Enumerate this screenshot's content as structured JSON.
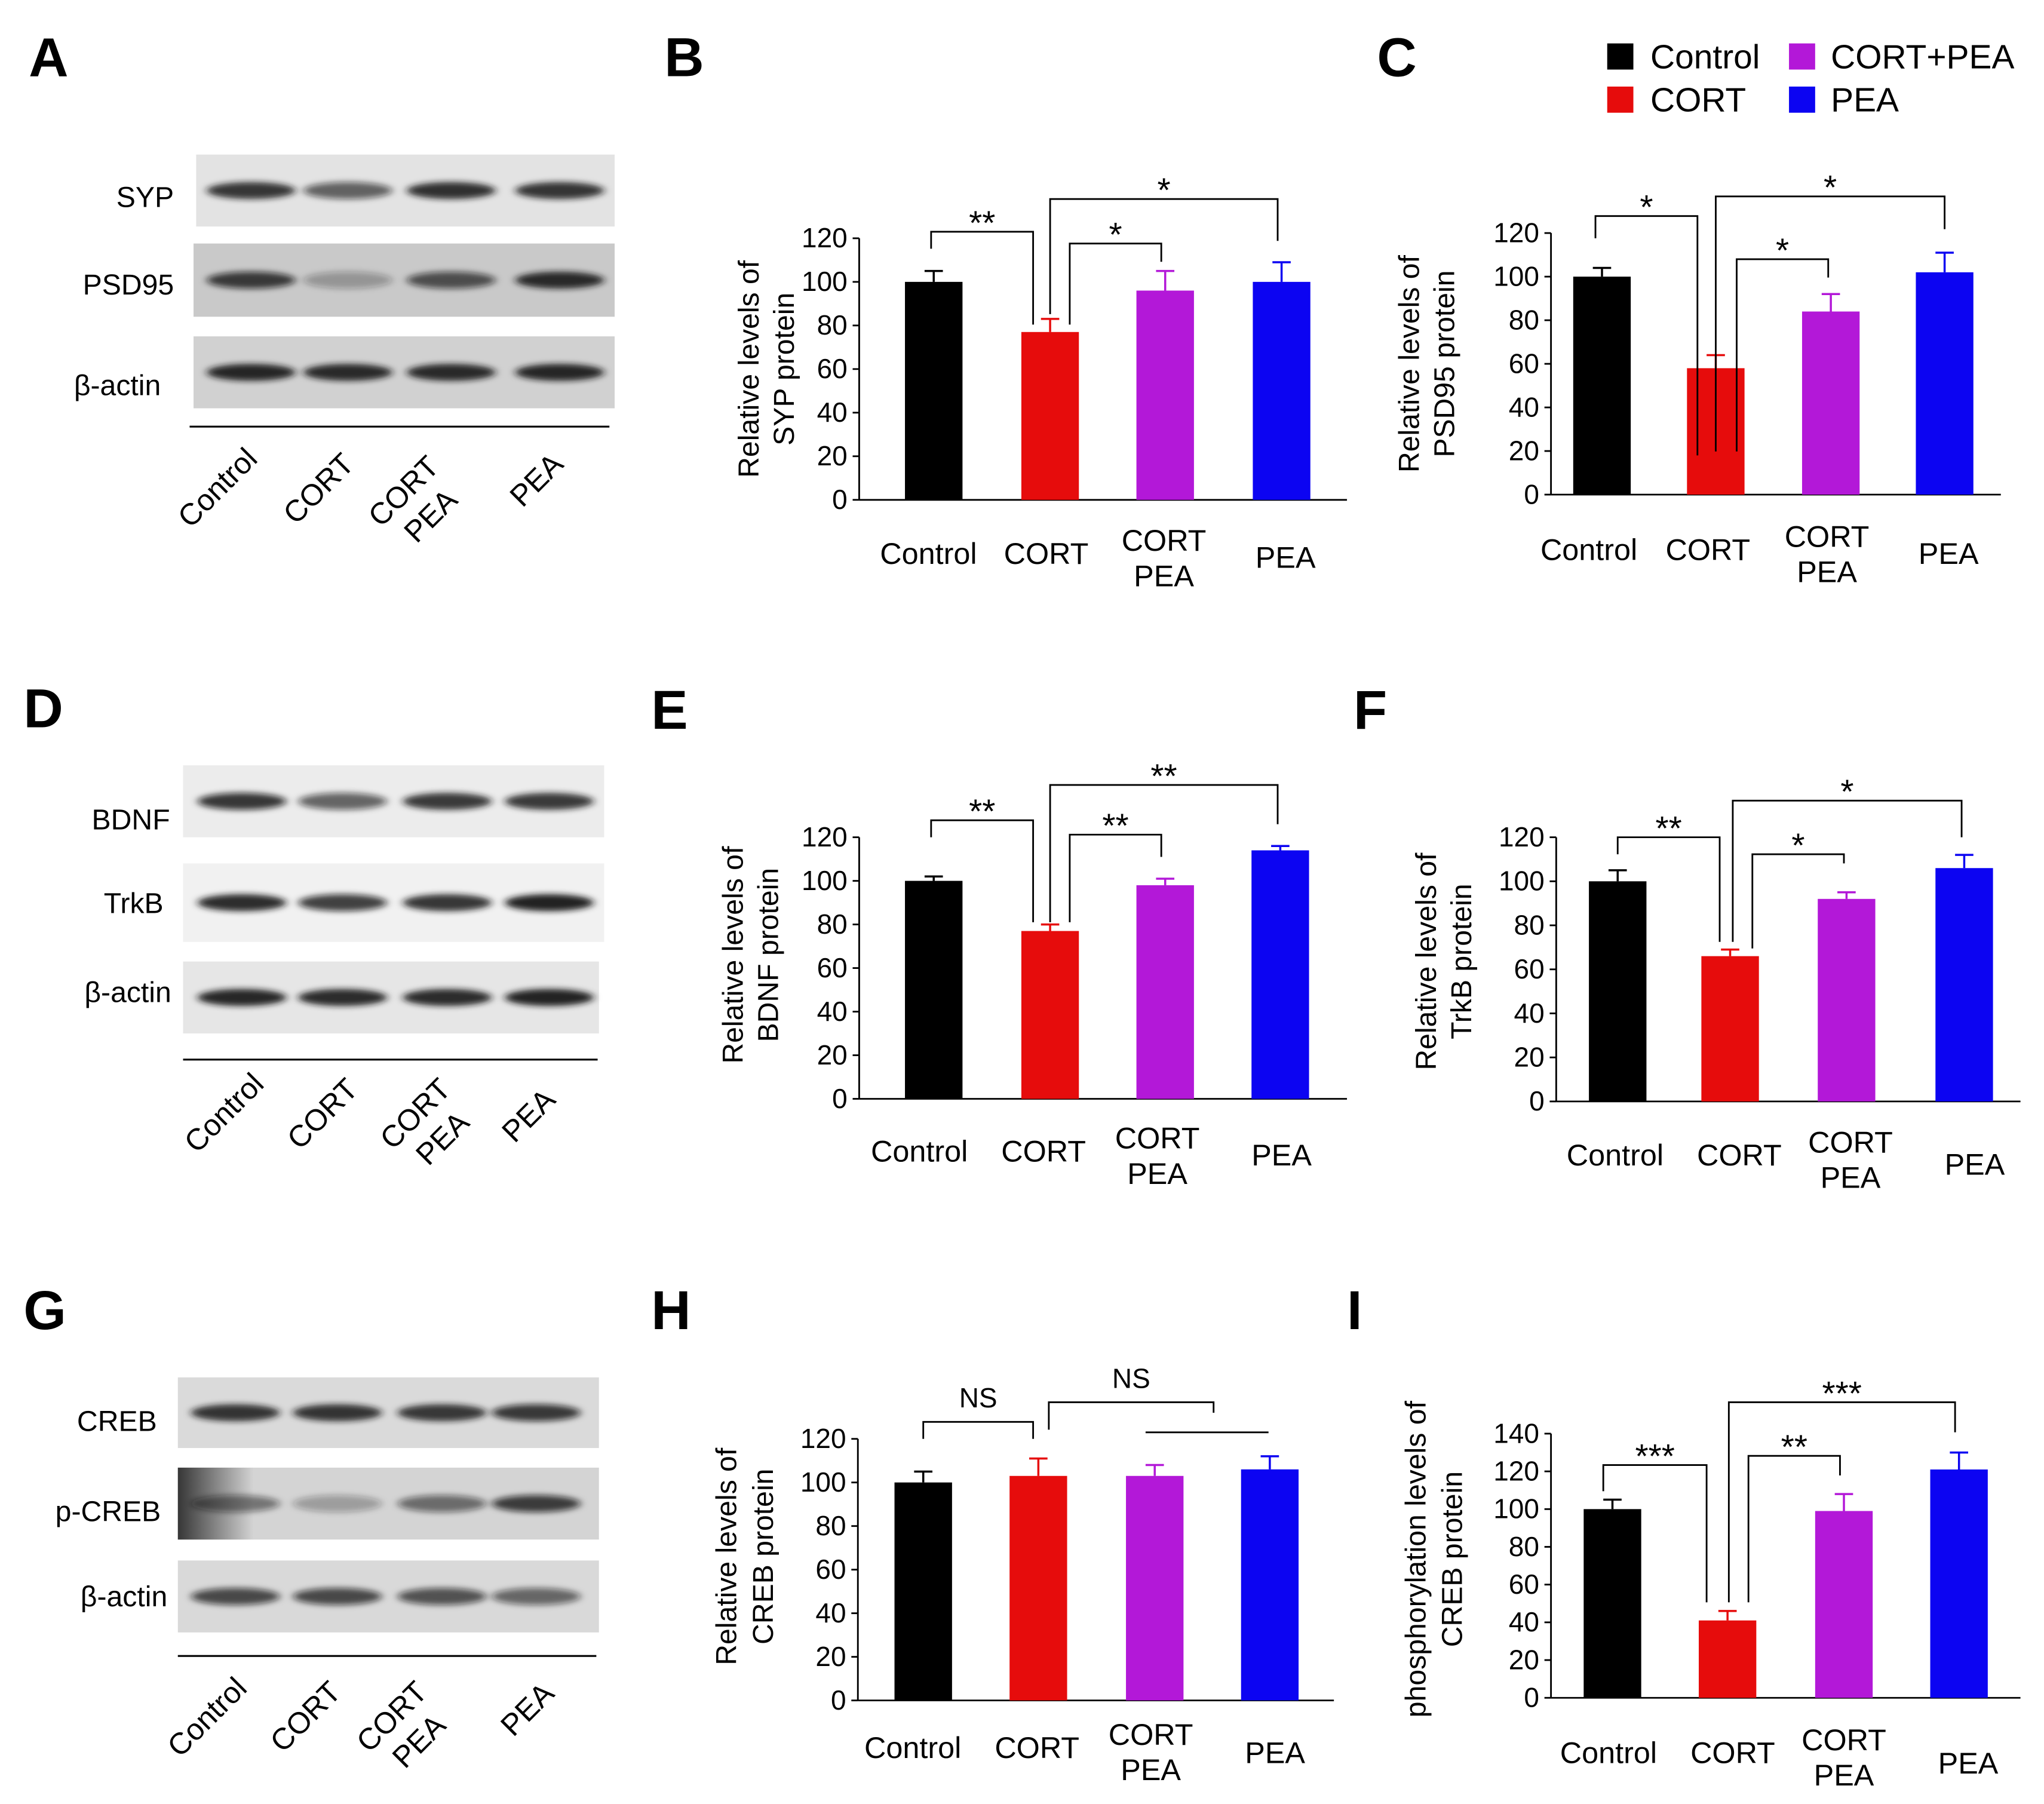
{
  "panel_labels": {
    "A": "A",
    "B": "B",
    "C": "C",
    "D": "D",
    "E": "E",
    "F": "F",
    "G": "G",
    "H": "H",
    "I": "I"
  },
  "legend": [
    {
      "label": "Control",
      "color": "#000000"
    },
    {
      "label": "CORT+PEA",
      "color": "#b318d8"
    },
    {
      "label": "CORT",
      "color": "#e60c0c"
    },
    {
      "label": "PEA",
      "color": "#0c04f2"
    }
  ],
  "blots": [
    {
      "panel": "A",
      "rows": [
        {
          "label": "SYP",
          "band_intensity": [
            0.85,
            0.62,
            0.88,
            0.86
          ]
        },
        {
          "label": "PSD95",
          "band_intensity": [
            0.78,
            0.3,
            0.68,
            0.9
          ]
        },
        {
          "label": "β-actin",
          "band_intensity": [
            0.92,
            0.9,
            0.9,
            0.92
          ]
        }
      ],
      "lanes": [
        [
          "Control"
        ],
        [
          "CORT"
        ],
        [
          "CORT",
          "PEA"
        ],
        [
          "PEA"
        ]
      ]
    },
    {
      "panel": "D",
      "rows": [
        {
          "label": "BDNF",
          "band_intensity": [
            0.82,
            0.62,
            0.84,
            0.84
          ]
        },
        {
          "label": "TrkB",
          "band_intensity": [
            0.9,
            0.78,
            0.86,
            0.95
          ]
        },
        {
          "label": "β-actin",
          "band_intensity": [
            0.92,
            0.9,
            0.9,
            0.94
          ]
        }
      ],
      "lanes": [
        [
          "Control"
        ],
        [
          "CORT"
        ],
        [
          "CORT",
          "PEA"
        ],
        [
          "PEA"
        ]
      ]
    },
    {
      "panel": "G",
      "rows": [
        {
          "label": "CREB",
          "band_intensity": [
            0.86,
            0.86,
            0.84,
            0.8
          ]
        },
        {
          "label": "p-CREB",
          "band_intensity": [
            0.5,
            0.3,
            0.55,
            0.78
          ]
        },
        {
          "label": "β-actin",
          "band_intensity": [
            0.72,
            0.72,
            0.68,
            0.58
          ]
        }
      ],
      "lanes": [
        [
          "Control"
        ],
        [
          "CORT"
        ],
        [
          "CORT",
          "PEA"
        ],
        [
          "PEA"
        ]
      ]
    }
  ],
  "chart_data": [
    {
      "panel": "B",
      "type": "bar",
      "title": "",
      "ylabel": [
        "Relative levels of",
        "SYP protein"
      ],
      "ylim": [
        0,
        120
      ],
      "yticks": [
        0,
        20,
        40,
        60,
        80,
        100,
        120
      ],
      "categories": [
        [
          "Control"
        ],
        [
          "CORT"
        ],
        [
          "CORT",
          "PEA"
        ],
        [
          "PEA"
        ]
      ],
      "values": [
        100,
        77,
        96,
        100
      ],
      "errors": [
        5,
        6,
        9,
        9
      ],
      "bar_colors": [
        "#000000",
        "#e60c0c",
        "#b318d8",
        "#0c04f2"
      ],
      "significance": [
        {
          "between": [
            0,
            1
          ],
          "label": "**"
        },
        {
          "between": [
            1,
            2
          ],
          "label": "*"
        },
        {
          "between": [
            1,
            3
          ],
          "label": "*"
        }
      ]
    },
    {
      "panel": "C",
      "type": "bar",
      "title": "",
      "ylabel": [
        "Relative levels of",
        "PSD95 protein"
      ],
      "ylim": [
        0,
        120
      ],
      "yticks": [
        0,
        20,
        40,
        60,
        80,
        100,
        120
      ],
      "categories": [
        [
          "Control"
        ],
        [
          "CORT"
        ],
        [
          "CORT",
          "PEA"
        ],
        [
          "PEA"
        ]
      ],
      "values": [
        100,
        58,
        84,
        102
      ],
      "errors": [
        4,
        6,
        8,
        9
      ],
      "bar_colors": [
        "#000000",
        "#e60c0c",
        "#b318d8",
        "#0c04f2"
      ],
      "significance": [
        {
          "between": [
            0,
            1
          ],
          "label": "*"
        },
        {
          "between": [
            1,
            2
          ],
          "label": "*"
        },
        {
          "between": [
            1,
            3
          ],
          "label": "*"
        }
      ]
    },
    {
      "panel": "E",
      "type": "bar",
      "title": "",
      "ylabel": [
        "Relative levels of",
        "BDNF protein"
      ],
      "ylim": [
        0,
        120
      ],
      "yticks": [
        0,
        20,
        40,
        60,
        80,
        100,
        120
      ],
      "categories": [
        [
          "Control"
        ],
        [
          "CORT"
        ],
        [
          "CORT",
          "PEA"
        ],
        [
          "PEA"
        ]
      ],
      "values": [
        100,
        77,
        98,
        114
      ],
      "errors": [
        2,
        3,
        3,
        2
      ],
      "bar_colors": [
        "#000000",
        "#e60c0c",
        "#b318d8",
        "#0c04f2"
      ],
      "significance": [
        {
          "between": [
            0,
            1
          ],
          "label": "**"
        },
        {
          "between": [
            1,
            2
          ],
          "label": "**"
        },
        {
          "between": [
            1,
            3
          ],
          "label": "**"
        }
      ]
    },
    {
      "panel": "F",
      "type": "bar",
      "title": "",
      "ylabel": [
        "Relative levels of",
        "TrkB protein"
      ],
      "ylim": [
        0,
        120
      ],
      "yticks": [
        0,
        20,
        40,
        60,
        80,
        100,
        120
      ],
      "categories": [
        [
          "Control"
        ],
        [
          "CORT"
        ],
        [
          "CORT",
          "PEA"
        ],
        [
          "PEA"
        ]
      ],
      "values": [
        100,
        66,
        92,
        106
      ],
      "errors": [
        5,
        3,
        3,
        6
      ],
      "bar_colors": [
        "#000000",
        "#e60c0c",
        "#b318d8",
        "#0c04f2"
      ],
      "significance": [
        {
          "between": [
            0,
            1
          ],
          "label": "**"
        },
        {
          "between": [
            1,
            2
          ],
          "label": "*"
        },
        {
          "between": [
            1,
            3
          ],
          "label": "*"
        }
      ]
    },
    {
      "panel": "H",
      "type": "bar",
      "title": "",
      "ylabel": [
        "Relative levels of",
        "CREB protein"
      ],
      "ylim": [
        0,
        120
      ],
      "yticks": [
        0,
        20,
        40,
        60,
        80,
        100,
        120
      ],
      "categories": [
        [
          "Control"
        ],
        [
          "CORT"
        ],
        [
          "CORT",
          "PEA"
        ],
        [
          "PEA"
        ]
      ],
      "values": [
        100,
        103,
        103,
        106
      ],
      "errors": [
        5,
        8,
        5,
        6
      ],
      "bar_colors": [
        "#000000",
        "#e60c0c",
        "#b318d8",
        "#0c04f2"
      ],
      "significance": [
        {
          "between": [
            0,
            1
          ],
          "label": "NS"
        },
        {
          "between": [
            1,
            3
          ],
          "label": "NS"
        }
      ]
    },
    {
      "panel": "I",
      "type": "bar",
      "title": "",
      "ylabel": [
        "phosphorylation levels of",
        "CREB protein"
      ],
      "ylim": [
        0,
        140
      ],
      "yticks": [
        0,
        20,
        40,
        60,
        80,
        100,
        120,
        140
      ],
      "categories": [
        [
          "Control"
        ],
        [
          "CORT"
        ],
        [
          "CORT",
          "PEA"
        ],
        [
          "PEA"
        ]
      ],
      "values": [
        100,
        41,
        99,
        121
      ],
      "errors": [
        5,
        5,
        9,
        9
      ],
      "bar_colors": [
        "#000000",
        "#e60c0c",
        "#b318d8",
        "#0c04f2"
      ],
      "significance": [
        {
          "between": [
            0,
            1
          ],
          "label": "***"
        },
        {
          "between": [
            1,
            2
          ],
          "label": "**"
        },
        {
          "between": [
            1,
            3
          ],
          "label": "***"
        }
      ]
    }
  ]
}
